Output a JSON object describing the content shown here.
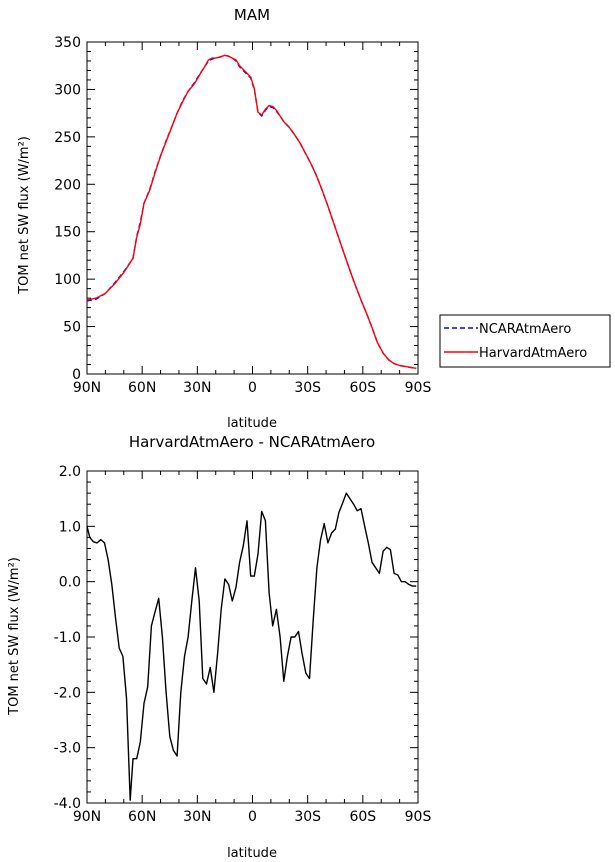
{
  "chart_data": [
    {
      "type": "line",
      "title": "MAM",
      "xlabel": "latitude",
      "ylabel": "TOM net SW flux (W/m²)",
      "xlim": [
        90,
        -90
      ],
      "ylim": [
        0,
        350
      ],
      "x_ticks": [
        {
          "v": 90,
          "label": "90N"
        },
        {
          "v": 60,
          "label": "60N"
        },
        {
          "v": 30,
          "label": "30N"
        },
        {
          "v": 0,
          "label": "0"
        },
        {
          "v": -30,
          "label": "30S"
        },
        {
          "v": -60,
          "label": "60S"
        },
        {
          "v": -90,
          "label": "90S"
        }
      ],
      "y_ticks": [
        {
          "v": 0,
          "label": "0"
        },
        {
          "v": 50,
          "label": "50"
        },
        {
          "v": 100,
          "label": "100"
        },
        {
          "v": 150,
          "label": "150"
        },
        {
          "v": 200,
          "label": "200"
        },
        {
          "v": 250,
          "label": "250"
        },
        {
          "v": 300,
          "label": "300"
        },
        {
          "v": 350,
          "label": "350"
        }
      ],
      "legend_placement": "right",
      "series": [
        {
          "name": "NCARAtmAero",
          "color": "#0000ff",
          "dash": "dashed",
          "x": [
            90,
            85,
            80,
            75,
            70,
            65,
            63,
            61,
            59,
            56,
            53,
            50,
            47,
            44,
            41,
            38,
            35,
            32,
            30,
            28,
            26,
            24,
            22,
            20,
            18,
            15,
            13,
            11,
            9,
            7,
            5,
            3,
            1,
            -1,
            -3,
            -5,
            -7,
            -9,
            -11,
            -13,
            -15,
            -17,
            -20,
            -23,
            -26,
            -29,
            -32,
            -35,
            -38,
            -41,
            -44,
            -47,
            -50,
            -53,
            -56,
            -59,
            -62,
            -65,
            -68,
            -71,
            -74,
            -77,
            -80,
            -83,
            -86,
            -89
          ],
          "y": [
            77,
            79,
            85,
            96,
            108,
            122,
            145,
            160,
            180,
            194,
            213,
            230,
            246,
            260,
            275,
            288,
            298,
            306,
            312,
            318,
            324,
            330,
            332,
            333,
            334,
            336,
            335,
            333,
            330,
            324,
            320,
            316,
            312,
            300,
            276,
            272,
            278,
            282,
            281,
            277,
            272,
            266,
            260,
            252,
            243,
            232,
            221,
            208,
            193,
            177,
            160,
            143,
            126,
            109,
            93,
            78,
            64,
            49,
            33,
            22,
            15,
            11,
            9,
            8,
            7,
            6
          ]
        },
        {
          "name": "HarvardAtmAero",
          "color": "#ff0000",
          "dash": "solid",
          "x": [
            90,
            85,
            80,
            75,
            70,
            65,
            63,
            61,
            59,
            56,
            53,
            50,
            47,
            44,
            41,
            38,
            35,
            32,
            30,
            28,
            26,
            24,
            22,
            20,
            18,
            15,
            13,
            11,
            9,
            7,
            5,
            3,
            1,
            -1,
            -3,
            -5,
            -7,
            -9,
            -11,
            -13,
            -15,
            -17,
            -20,
            -23,
            -26,
            -29,
            -32,
            -35,
            -38,
            -41,
            -44,
            -47,
            -50,
            -53,
            -56,
            -59,
            -62,
            -65,
            -68,
            -71,
            -74,
            -77,
            -80,
            -83,
            -86,
            -89
          ],
          "y": [
            78,
            80,
            85,
            95,
            107,
            122,
            144,
            158,
            180,
            193,
            212,
            230,
            245,
            260,
            275,
            287,
            298,
            305,
            311,
            318,
            324,
            331,
            333,
            333,
            334,
            336,
            335,
            333,
            331,
            325,
            321,
            317,
            313,
            301,
            276,
            273,
            279,
            283,
            282,
            278,
            272,
            266,
            260,
            252,
            243,
            232,
            221,
            208,
            193,
            177,
            160,
            143,
            126,
            109,
            93,
            78,
            64,
            49,
            33,
            22,
            15,
            11,
            9,
            8,
            7,
            6
          ]
        }
      ]
    },
    {
      "type": "line",
      "title": "HarvardAtmAero - NCARAtmAero",
      "xlabel": "latitude",
      "ylabel": "TOM net SW flux (W/m²)",
      "xlim": [
        90,
        -90
      ],
      "ylim": [
        -4,
        2
      ],
      "x_ticks": [
        {
          "v": 90,
          "label": "90N"
        },
        {
          "v": 60,
          "label": "60N"
        },
        {
          "v": 30,
          "label": "30N"
        },
        {
          "v": 0,
          "label": "0"
        },
        {
          "v": -30,
          "label": "30S"
        },
        {
          "v": -60,
          "label": "60S"
        },
        {
          "v": -90,
          "label": "90S"
        }
      ],
      "y_ticks": [
        {
          "v": -4,
          "label": "-4.0"
        },
        {
          "v": -3,
          "label": "-3.0"
        },
        {
          "v": -2,
          "label": "-2.0"
        },
        {
          "v": -1,
          "label": "-1.0"
        },
        {
          "v": 0,
          "label": "0.0"
        },
        {
          "v": 1,
          "label": "1.0"
        },
        {
          "v": 2,
          "label": "2.0"
        }
      ],
      "series": [
        {
          "color": "#000000",
          "dash": "solid",
          "x": [
            90,
            88.5,
            86.5,
            84.5,
            82.5,
            80.5,
            78.5,
            76.5,
            74.5,
            72.5,
            70.5,
            68.5,
            66.5,
            65,
            63,
            61,
            59,
            57,
            55,
            53,
            51,
            49,
            47,
            45,
            43,
            41,
            39,
            37,
            35,
            33,
            31,
            29,
            27,
            25,
            23,
            21,
            19,
            17,
            15,
            13,
            11,
            9,
            7,
            5,
            3,
            1,
            -1,
            -3,
            -5,
            -7,
            -9,
            -11,
            -13,
            -15,
            -17,
            -19,
            -21,
            -23,
            -25,
            -27,
            -29,
            -31,
            -33,
            -35,
            -37,
            -39,
            -41,
            -43,
            -45,
            -47,
            -49,
            -51,
            -53,
            -55,
            -57,
            -59,
            -61,
            -63,
            -65,
            -67,
            -69,
            -71,
            -73,
            -75,
            -77,
            -79,
            -81,
            -83,
            -85,
            -87,
            -89
          ],
          "y": [
            1.0,
            0.8,
            0.72,
            0.7,
            0.76,
            0.7,
            0.4,
            -0.05,
            -0.65,
            -1.2,
            -1.35,
            -2.1,
            -3.95,
            -3.2,
            -3.2,
            -2.9,
            -2.2,
            -1.9,
            -0.8,
            -0.55,
            -0.3,
            -1.0,
            -2.0,
            -2.8,
            -3.05,
            -3.15,
            -2.0,
            -1.35,
            -1.0,
            -0.35,
            0.25,
            -0.35,
            -1.75,
            -1.85,
            -1.55,
            -2.0,
            -1.3,
            -0.5,
            0.05,
            -0.05,
            -0.35,
            -0.1,
            0.35,
            0.65,
            1.1,
            0.1,
            0.1,
            0.5,
            1.27,
            1.1,
            -0.2,
            -0.8,
            -0.5,
            -1.0,
            -1.8,
            -1.35,
            -1.0,
            -1.0,
            -0.9,
            -1.3,
            -1.65,
            -1.75,
            -0.7,
            0.25,
            0.75,
            1.05,
            0.7,
            0.88,
            0.95,
            1.25,
            1.42,
            1.6,
            1.5,
            1.4,
            1.28,
            1.32,
            1.0,
            0.7,
            0.35,
            0.25,
            0.15,
            0.55,
            0.62,
            0.58,
            0.15,
            0.12,
            0.0,
            0.0,
            -0.05,
            -0.08,
            -0.08
          ]
        }
      ]
    }
  ]
}
